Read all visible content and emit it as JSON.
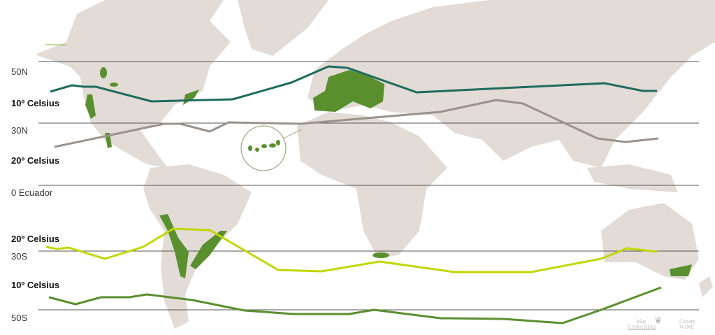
{
  "latitudes": [
    {
      "label": "50N"
    },
    {
      "label": "30N"
    },
    {
      "label": "0 Ecuador"
    },
    {
      "label": "30S"
    },
    {
      "label": "50S"
    }
  ],
  "isotherms": [
    {
      "label": "10º Celsius",
      "hemisphere": "north",
      "color": "#1f6b5e"
    },
    {
      "label": "20º Celsius",
      "hemisphere": "north",
      "color": "#9c928c"
    },
    {
      "label": "20º Celsius",
      "hemisphere": "south",
      "color": "#c3d600"
    },
    {
      "label": "10º Celsius",
      "hemisphere": "south",
      "color": "#5a8f2e"
    }
  ],
  "colors": {
    "land": "#e2dbd6",
    "wine_regions": "#5a8f2e",
    "latitude_lines": "#555555"
  },
  "logo": {
    "left_top": "Islas",
    "left_bottom": "CANARIAS",
    "right_top": "Canary",
    "right_bottom": "WINE"
  }
}
